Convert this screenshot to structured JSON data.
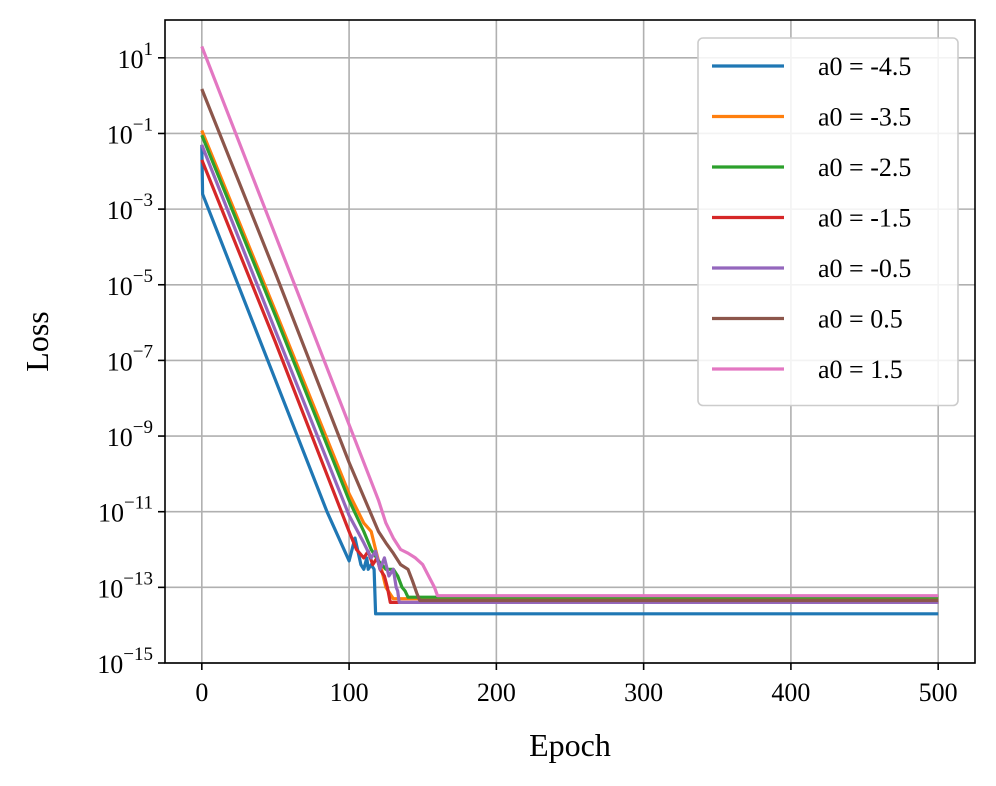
{
  "chart_data": {
    "type": "line",
    "xlabel": "Epoch",
    "ylabel": "Loss",
    "xlim": [
      -25,
      525
    ],
    "ylim": [
      1e-15,
      100
    ],
    "yscale": "log",
    "grid": true,
    "legend_position": "top-right",
    "x_ticks": [
      0,
      100,
      200,
      300,
      400,
      500
    ],
    "x_tick_labels": [
      "0",
      "100",
      "200",
      "300",
      "400",
      "500"
    ],
    "y_ticks": [
      {
        "exp": 1,
        "base": "10",
        "sup": "1"
      },
      {
        "exp": -1,
        "base": "10",
        "sup": "−1"
      },
      {
        "exp": -3,
        "base": "10",
        "sup": "−3"
      },
      {
        "exp": -5,
        "base": "10",
        "sup": "−5"
      },
      {
        "exp": -7,
        "base": "10",
        "sup": "−7"
      },
      {
        "exp": -9,
        "base": "10",
        "sup": "−9"
      },
      {
        "exp": -11,
        "base": "10",
        "sup": "−11"
      },
      {
        "exp": -13,
        "base": "10",
        "sup": "−13"
      },
      {
        "exp": -15,
        "base": "10",
        "sup": "−15"
      }
    ],
    "series": [
      {
        "name": "a0 = -4.5",
        "color": "#1f77b4",
        "x": [
          0,
          0.5,
          50,
          85,
          100,
          104,
          108,
          110,
          112,
          113,
          115,
          117,
          118,
          500
        ],
        "y": [
          0.05,
          0.0025,
          3e-08,
          1e-11,
          5e-13,
          2e-12,
          4e-13,
          3e-13,
          6e-13,
          3e-13,
          4e-13,
          3e-13,
          2e-14,
          2e-14
        ]
      },
      {
        "name": "a0 = -3.5",
        "color": "#ff7f0e",
        "x": [
          0,
          50,
          100,
          110,
          115,
          118,
          120,
          122,
          125,
          130,
          500
        ],
        "y": [
          0.12,
          2e-06,
          3e-11,
          5e-12,
          3e-12,
          1e-12,
          5e-13,
          3e-13,
          1e-13,
          5e-14,
          5e-14
        ]
      },
      {
        "name": "a0 = -2.5",
        "color": "#2ca02c",
        "x": [
          0,
          50,
          100,
          110,
          115,
          120,
          125,
          130,
          133,
          136,
          138,
          140,
          500
        ],
        "y": [
          0.09,
          1.5e-06,
          2e-11,
          3e-12,
          1e-12,
          5e-13,
          3e-13,
          3e-13,
          2e-13,
          1e-13,
          8e-14,
          5.5e-14,
          5.5e-14
        ]
      },
      {
        "name": "a0 = -1.5",
        "color": "#d62728",
        "x": [
          0,
          50,
          100,
          105,
          110,
          113,
          116,
          119,
          121,
          124,
          126,
          128,
          500
        ],
        "y": [
          0.02,
          3e-07,
          3e-12,
          1e-12,
          6e-13,
          9e-13,
          4e-13,
          6e-13,
          3e-13,
          2e-13,
          1e-13,
          4e-14,
          4e-14
        ]
      },
      {
        "name": "a0 = -0.5",
        "color": "#9467bd",
        "x": [
          0,
          50,
          100,
          110,
          115,
          118,
          121,
          124,
          127,
          130,
          132,
          133,
          134,
          500
        ],
        "y": [
          0.05,
          6e-07,
          8e-12,
          1.5e-12,
          6e-13,
          9e-13,
          3e-13,
          6e-13,
          2e-13,
          3e-13,
          1e-13,
          8e-14,
          4e-14,
          4e-14
        ]
      },
      {
        "name": "a0 = 0.5",
        "color": "#8c564b",
        "x": [
          0,
          50,
          100,
          120,
          125,
          130,
          135,
          140,
          143,
          146,
          148,
          500
        ],
        "y": [
          1.5,
          2e-05,
          2e-10,
          3e-12,
          1.5e-12,
          8e-13,
          4e-13,
          3e-13,
          1.5e-13,
          7e-14,
          4.5e-14,
          4.5e-14
        ]
      },
      {
        "name": "a0 = 1.5",
        "color": "#e377c2",
        "x": [
          0,
          50,
          100,
          120,
          125,
          130,
          135,
          140,
          145,
          150,
          154,
          158,
          160,
          500
        ],
        "y": [
          20,
          0.0002,
          2e-09,
          2e-11,
          5e-12,
          2e-12,
          1e-12,
          8e-13,
          6e-13,
          4e-13,
          2e-13,
          1e-13,
          6e-14,
          6e-14
        ]
      }
    ]
  }
}
